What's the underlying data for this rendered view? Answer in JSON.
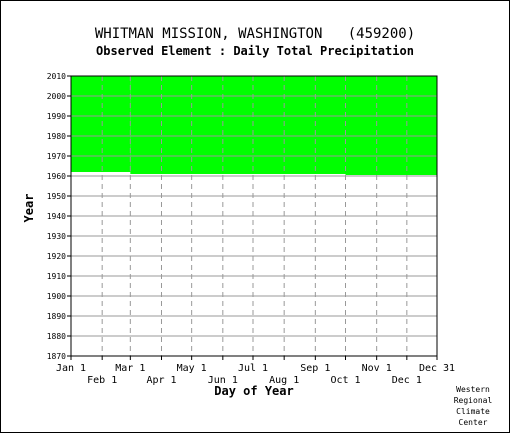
{
  "header": {
    "title": "WHITMAN MISSION, WASHINGTON   (459200)",
    "subtitle": "Observed Element : Daily Total Precipitation"
  },
  "credit": [
    "Western",
    "Regional",
    "Climate",
    "Center"
  ],
  "colors": {
    "data_fill": "#00ff00",
    "grid": "#999999",
    "axis": "#000000"
  },
  "chart_data": {
    "type": "heatmap",
    "title": "WHITMAN MISSION, WASHINGTON   (459200)",
    "subtitle": "Observed Element : Daily Total Precipitation",
    "xlabel": "Day of Year",
    "ylabel": "Year",
    "xlim": [
      1,
      365
    ],
    "ylim": [
      1870,
      2010
    ],
    "x_ticks_top_row": [
      {
        "label": "Jan 1",
        "day": 1
      },
      {
        "label": "Mar 1",
        "day": 60
      },
      {
        "label": "May 1",
        "day": 121
      },
      {
        "label": "Jul 1",
        "day": 182
      },
      {
        "label": "Sep 1",
        "day": 244
      },
      {
        "label": "Nov 1",
        "day": 305
      },
      {
        "label": "Dec 31",
        "day": 365
      }
    ],
    "x_ticks_bottom_row": [
      {
        "label": "Feb 1",
        "day": 32
      },
      {
        "label": "Apr 1",
        "day": 91
      },
      {
        "label": "Jun 1",
        "day": 152
      },
      {
        "label": "Aug 1",
        "day": 213
      },
      {
        "label": "Oct 1",
        "day": 274
      },
      {
        "label": "Dec 1",
        "day": 335
      }
    ],
    "y_ticks": [
      1870,
      1880,
      1890,
      1900,
      1910,
      1920,
      1930,
      1940,
      1950,
      1960,
      1970,
      1980,
      1990,
      2000,
      2010
    ],
    "grid": true,
    "data_coverage": [
      {
        "day_start": 1,
        "day_end": 60,
        "year_start": 1962,
        "year_end": 2010
      },
      {
        "day_start": 60,
        "day_end": 274,
        "year_start": 1961,
        "year_end": 2010
      },
      {
        "day_start": 274,
        "day_end": 365,
        "year_start": 1960.5,
        "year_end": 2010
      }
    ]
  }
}
